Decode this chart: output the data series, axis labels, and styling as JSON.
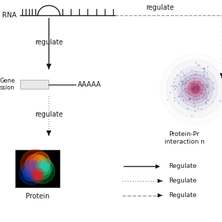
{
  "bg_color": "#ffffff",
  "mrna_label": "RNA",
  "gene_label1": "Gene",
  "gene_label2": "ssion",
  "aaaaa_label": "AAAAA",
  "protein_label": "Protein",
  "ppi_label1": "Protein-Pr",
  "ppi_label2": "interaction n",
  "regulate_label": "regulate",
  "legend_solid": "Regulate",
  "legend_dotted": "Regulate",
  "legend_dashed": "Regulate",
  "dark": "#1a1a1a",
  "gray": "#999999",
  "light_gray": "#bbbbbb"
}
